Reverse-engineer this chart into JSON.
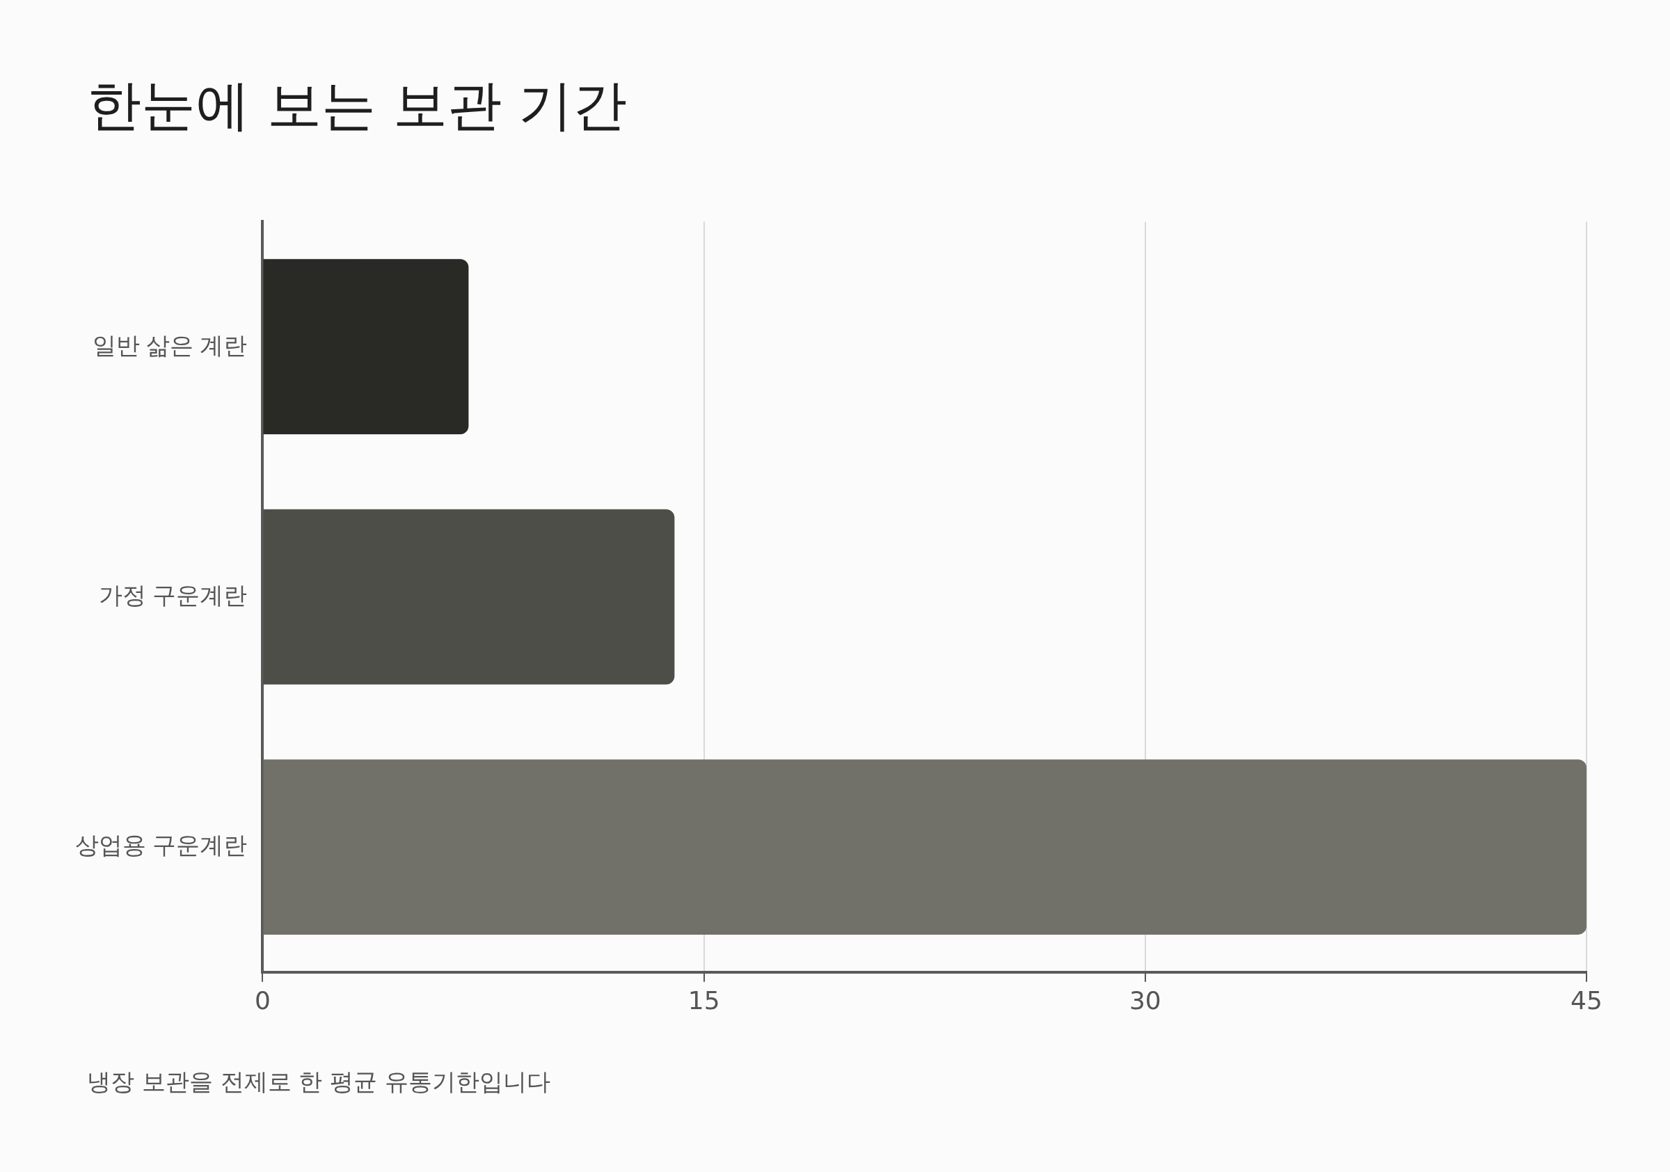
{
  "chart_data": {
    "type": "bar",
    "orientation": "horizontal",
    "title": "한눈에 보는 보관 기간",
    "categories": [
      "일반 삶은 계란",
      "가정 구운계란",
      "상업용 구운계란"
    ],
    "values": [
      7,
      14,
      45
    ],
    "colors": [
      "#292a25",
      "#4d4e47",
      "#71716a"
    ],
    "xlim": [
      0,
      45
    ],
    "xticks": [
      0,
      15,
      30,
      45
    ],
    "grid": "x",
    "legend": false,
    "annotations": [
      "냉장 보관을 전제로 한 평균 유통기한입니다"
    ]
  }
}
